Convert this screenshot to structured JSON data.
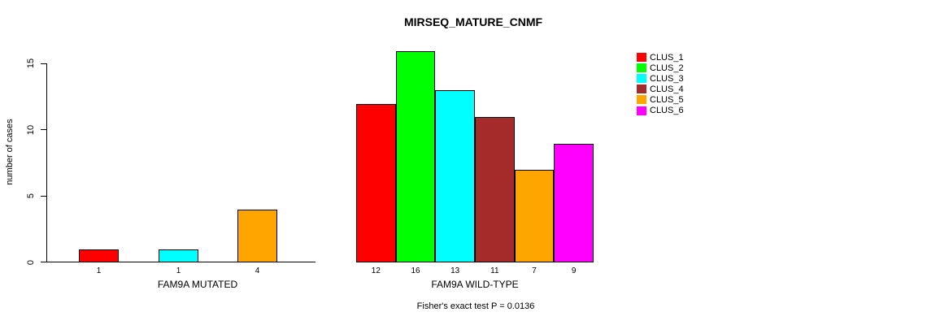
{
  "chart_data": {
    "type": "bar",
    "title": "MIRSEQ_MATURE_CNMF",
    "ylabel": "number of cases",
    "xlabel": "",
    "ylim": [
      0,
      16
    ],
    "yticks": [
      0,
      5,
      10,
      15
    ],
    "grid": false,
    "legend_position": "right",
    "groups": [
      {
        "label": "FAM9A MUTATED",
        "bars": [
          {
            "cluster": "CLUS_1",
            "value": 1,
            "color": "#FF0000"
          },
          {
            "cluster": "CLUS_3",
            "value": 1,
            "color": "#00FFFF"
          },
          {
            "cluster": "CLUS_5",
            "value": 4,
            "color": "#FFA500"
          }
        ]
      },
      {
        "label": "FAM9A WILD-TYPE",
        "bars": [
          {
            "cluster": "CLUS_1",
            "value": 12,
            "color": "#FF0000"
          },
          {
            "cluster": "CLUS_2",
            "value": 16,
            "color": "#00FF00"
          },
          {
            "cluster": "CLUS_3",
            "value": 13,
            "color": "#00FFFF"
          },
          {
            "cluster": "CLUS_4",
            "value": 11,
            "color": "#A52A2A"
          },
          {
            "cluster": "CLUS_5",
            "value": 7,
            "color": "#FFA500"
          },
          {
            "cluster": "CLUS_6",
            "value": 9,
            "color": "#FF00FF"
          }
        ]
      }
    ],
    "annotation": "Fisher's exact test P = 0.0136",
    "legend": [
      {
        "label": "CLUS_1",
        "color": "#FF0000"
      },
      {
        "label": "CLUS_2",
        "color": "#00FF00"
      },
      {
        "label": "CLUS_3",
        "color": "#00FFFF"
      },
      {
        "label": "CLUS_4",
        "color": "#A52A2A"
      },
      {
        "label": "CLUS_5",
        "color": "#FFA500"
      },
      {
        "label": "CLUS_6",
        "color": "#FF00FF"
      }
    ]
  }
}
